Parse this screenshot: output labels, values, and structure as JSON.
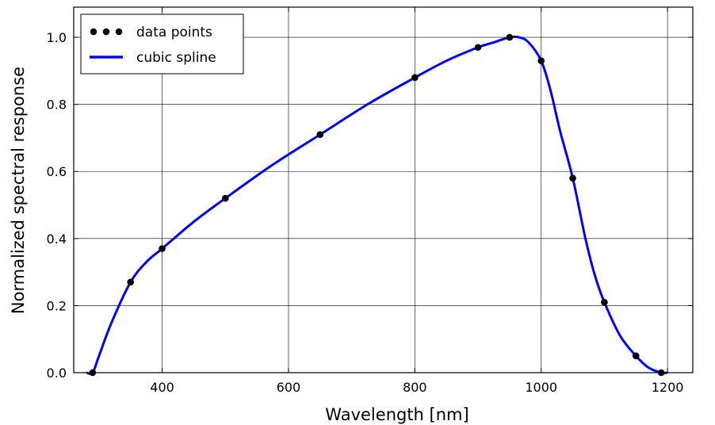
{
  "chart_data": {
    "type": "line",
    "xlabel": "Wavelength [nm]",
    "ylabel": "Normalized spectral response",
    "xlim": [
      260,
      1240
    ],
    "ylim": [
      0.0,
      1.09
    ],
    "xticks": [
      400,
      600,
      800,
      1000,
      1200
    ],
    "xtick_labels": [
      "400",
      "600",
      "800",
      "1000",
      "1200"
    ],
    "yticks": [
      0.0,
      0.2,
      0.4,
      0.6,
      0.8,
      1.0
    ],
    "ytick_labels": [
      "0.0",
      "0.2",
      "0.4",
      "0.6",
      "0.8",
      "1.0"
    ],
    "grid": true,
    "legend_position": "top-left",
    "series": [
      {
        "name": "data points",
        "kind": "scatter",
        "color": "#000000",
        "x": [
          290,
          350,
          400,
          500,
          650,
          800,
          900,
          950,
          1000,
          1050,
          1100,
          1150,
          1190
        ],
        "y": [
          0.0,
          0.27,
          0.37,
          0.52,
          0.71,
          0.88,
          0.97,
          1.0,
          0.93,
          0.58,
          0.21,
          0.05,
          0.0
        ]
      },
      {
        "name": "cubic spline",
        "kind": "line",
        "color": "#0000ff",
        "x": [
          280,
          290,
          300,
          320,
          350,
          375,
          400,
          450,
          500,
          575,
          650,
          725,
          800,
          850,
          900,
          925,
          950,
          965,
          980,
          1000,
          1015,
          1030,
          1050,
          1070,
          1085,
          1100,
          1125,
          1150,
          1170,
          1190,
          1200
        ],
        "y": [
          0.0,
          0.0,
          0.05,
          0.15,
          0.27,
          0.33,
          0.37,
          0.45,
          0.52,
          0.62,
          0.71,
          0.8,
          0.88,
          0.93,
          0.97,
          0.985,
          1.0,
          1.0,
          0.985,
          0.93,
          0.84,
          0.72,
          0.58,
          0.4,
          0.29,
          0.21,
          0.11,
          0.05,
          0.015,
          0.0,
          0.0
        ]
      }
    ]
  }
}
